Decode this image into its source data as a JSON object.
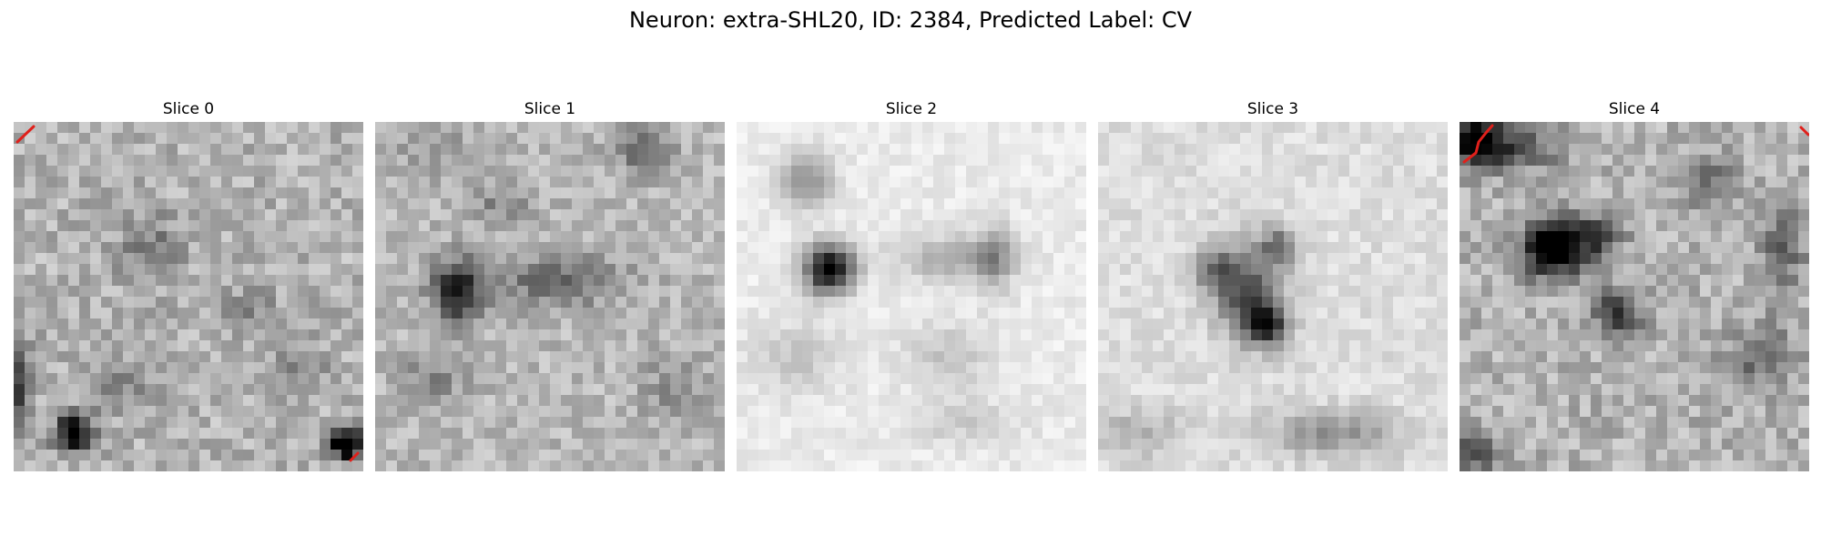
{
  "figure": {
    "title": "Neuron: extra-SHL20, ID: 2384, Predicted Label: CV"
  },
  "panels": [
    {
      "title": "Slice 0"
    },
    {
      "title": "Slice 1"
    },
    {
      "title": "Slice 2"
    },
    {
      "title": "Slice 3"
    },
    {
      "title": "Slice 4"
    }
  ],
  "colors": {
    "background": "#ffffff",
    "contour": "#e0201b",
    "colormap": "grayscale-inverted"
  }
}
